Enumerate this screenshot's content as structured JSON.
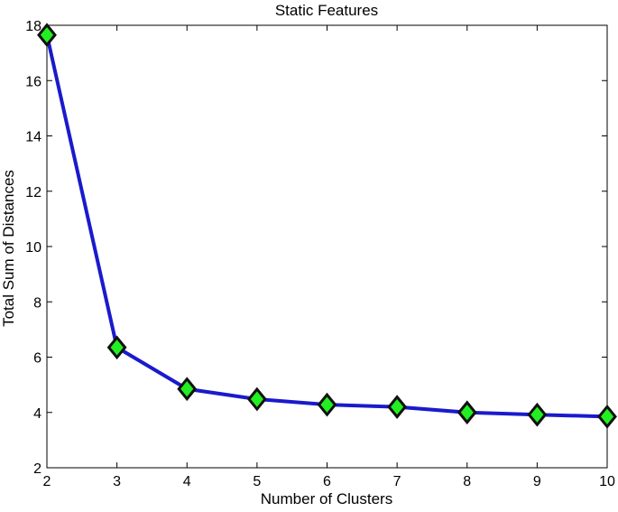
{
  "chart_data": {
    "type": "line",
    "title": "Static Features",
    "xlabel": "Number of Clusters",
    "ylabel": "Total Sum of Distances",
    "x": [
      2,
      3,
      4,
      5,
      6,
      7,
      8,
      9,
      10
    ],
    "series": [
      {
        "values": [
          17.65,
          6.35,
          4.85,
          4.48,
          4.28,
          4.2,
          4.0,
          3.92,
          3.85
        ],
        "line_color": "#1a1acc",
        "marker": "diamond",
        "marker_fill": "#22ee22",
        "marker_edge": "#111111"
      }
    ],
    "xlim": [
      2,
      10
    ],
    "ylim": [
      2,
      18
    ],
    "xticks": [
      2,
      3,
      4,
      5,
      6,
      7,
      8,
      9,
      10
    ],
    "yticks": [
      2,
      4,
      6,
      8,
      10,
      12,
      14,
      16,
      18
    ],
    "grid": false
  }
}
